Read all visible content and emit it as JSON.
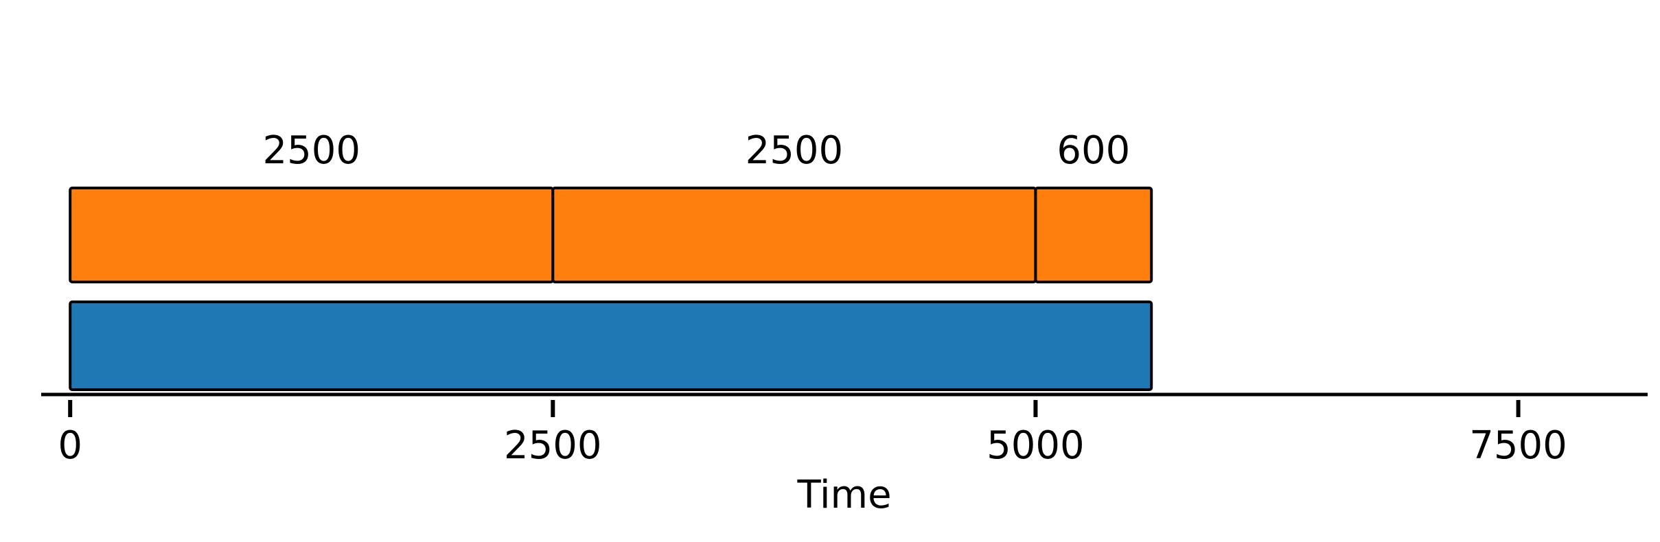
{
  "chart_data": {
    "type": "bar",
    "orientation": "horizontal-stacked",
    "xlabel": "Time",
    "xlim": [
      -150,
      8170
    ],
    "xticks": [
      0,
      2500,
      5000,
      7500
    ],
    "grid": false,
    "legend": "none",
    "series": [
      {
        "color": "#1f77b4",
        "segments": [
          {
            "start": 0,
            "duration": 5600
          }
        ]
      },
      {
        "color": "#ff7f0e",
        "segments": [
          {
            "start": 0,
            "duration": 2500,
            "label": "2500"
          },
          {
            "start": 2500,
            "duration": 2500,
            "label": "2500"
          },
          {
            "start": 5000,
            "duration": 600,
            "label": "600"
          }
        ]
      }
    ]
  }
}
